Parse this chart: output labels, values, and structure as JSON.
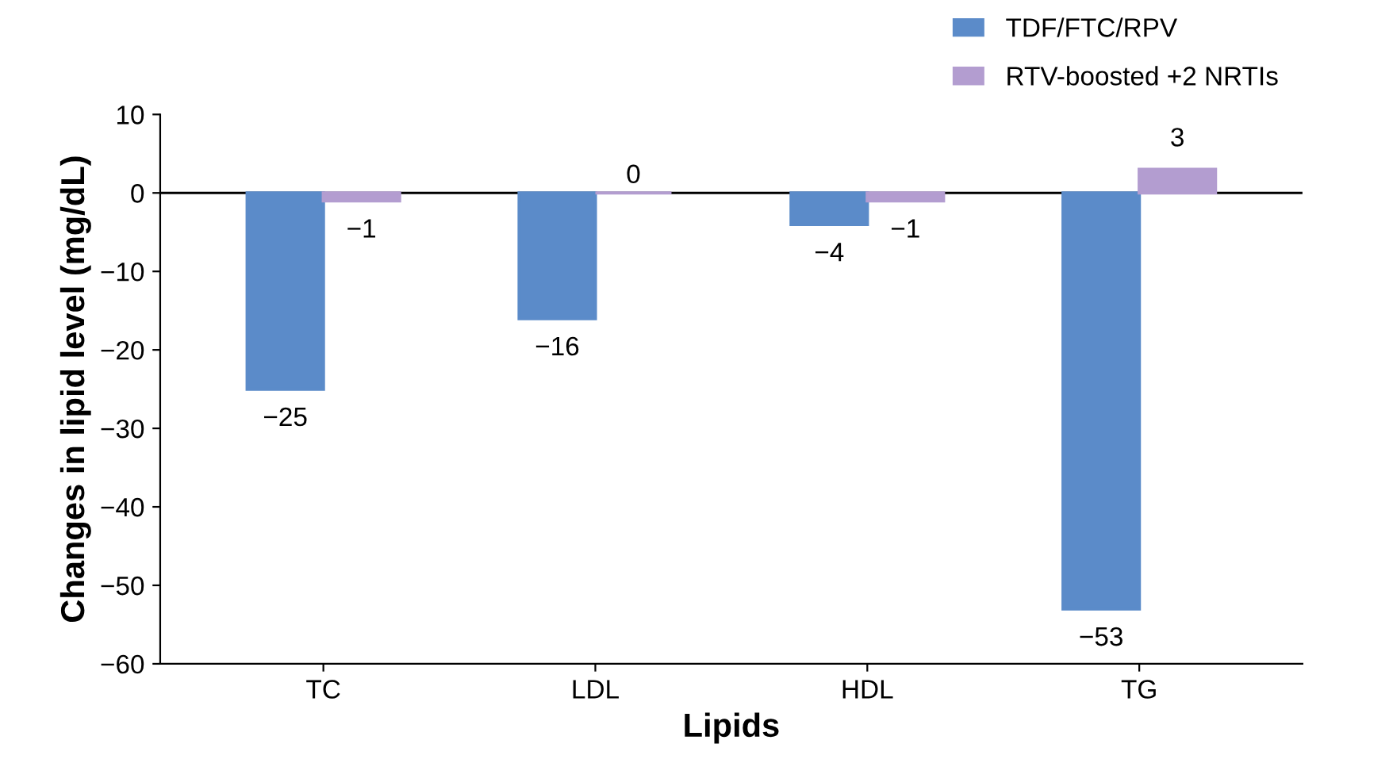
{
  "chart_data": {
    "type": "bar",
    "xlabel": "Lipids",
    "ylabel": "Changes in lipid level (mg/dL)",
    "categories": [
      "TC",
      "LDL",
      "HDL",
      "TG"
    ],
    "series": [
      {
        "name": "TDF/FTC/RPV",
        "color": "#5b8bc9",
        "values": [
          -25,
          -16,
          -4,
          -53
        ]
      },
      {
        "name": "RTV-boosted +2 NRTIs",
        "color": "#b39dd0",
        "values": [
          -1,
          0,
          -1,
          3
        ]
      }
    ],
    "ylim": [
      -60,
      10
    ],
    "yticks": [
      -60,
      -50,
      -40,
      -30,
      -20,
      -10,
      0,
      10
    ],
    "ref_lines": [
      {
        "axis": "y",
        "value": 0,
        "color": "#000000"
      }
    ],
    "data_labels": true,
    "grid": false,
    "legend": "top right"
  }
}
